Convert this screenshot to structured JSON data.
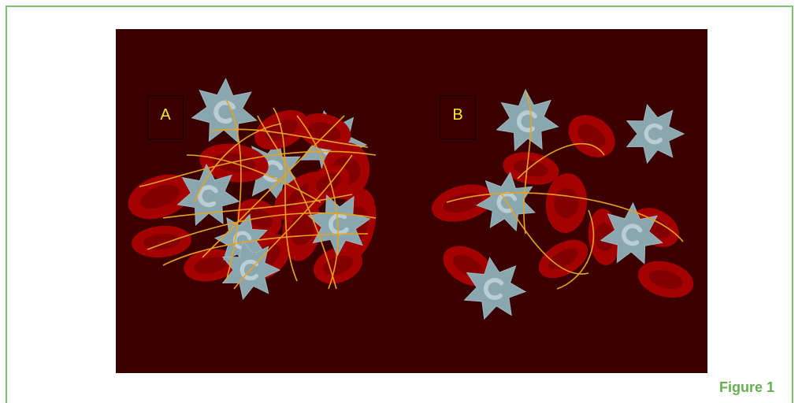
{
  "figure": {
    "caption": "Figure 1",
    "panels": [
      {
        "label": "A"
      },
      {
        "label": "B"
      }
    ]
  },
  "colors": {
    "frame": "#7dc36b",
    "panel_background": "#3a0000",
    "red_cell": "#a50000",
    "platelet": "#8aa6ae",
    "fibrin": "#e7a21f",
    "label_text": "#f1ea33",
    "caption_text": "#66b04e"
  }
}
